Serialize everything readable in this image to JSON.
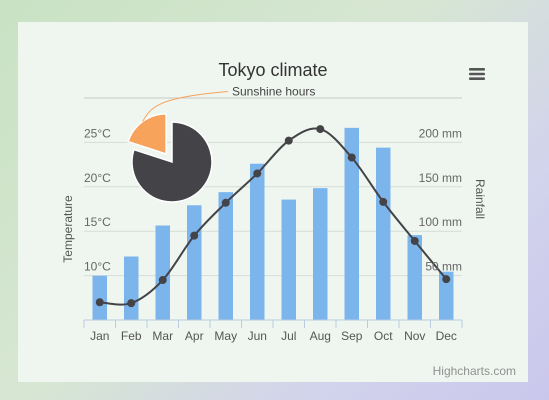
{
  "chart_data": {
    "title": "Tokyo climate",
    "categories": [
      "Jan",
      "Feb",
      "Mar",
      "Apr",
      "May",
      "Jun",
      "Jul",
      "Aug",
      "Sep",
      "Oct",
      "Nov",
      "Dec"
    ],
    "y_axis_left": {
      "label": "Temperature",
      "unit": "°C",
      "ticks": [
        10,
        15,
        20,
        25
      ],
      "tick_labels": [
        "10°C",
        "15°C",
        "20°C",
        "25°C"
      ],
      "range": [
        5,
        30
      ]
    },
    "y_axis_right": {
      "label": "Rainfall",
      "unit": "mm",
      "ticks": [
        50,
        100,
        150,
        200
      ],
      "tick_labels": [
        "50 mm",
        "100 mm",
        "150 mm",
        "200 mm"
      ],
      "range": [
        0,
        250
      ]
    },
    "series": [
      {
        "type": "bar",
        "axis": "right",
        "color": "#7cb5ec",
        "values": [
          49.9,
          71.5,
          106.4,
          129.2,
          144.0,
          176.0,
          135.6,
          148.5,
          216.4,
          194.1,
          95.6,
          54.4
        ]
      },
      {
        "type": "spline",
        "axis": "left",
        "color": "#434348",
        "values": [
          7.0,
          6.9,
          9.5,
          14.5,
          18.2,
          21.5,
          25.2,
          26.5,
          23.3,
          18.3,
          13.9,
          9.6
        ]
      },
      {
        "type": "pie",
        "name": "Sunshine hours",
        "slices": [
          {
            "value": 80,
            "color": "#434348"
          },
          {
            "value": 20,
            "color": "#f7a35c",
            "sliced": true
          }
        ]
      }
    ],
    "grid": true
  },
  "credits": "Highcharts.com",
  "icons": {
    "menu": "hamburger-menu-icon"
  }
}
